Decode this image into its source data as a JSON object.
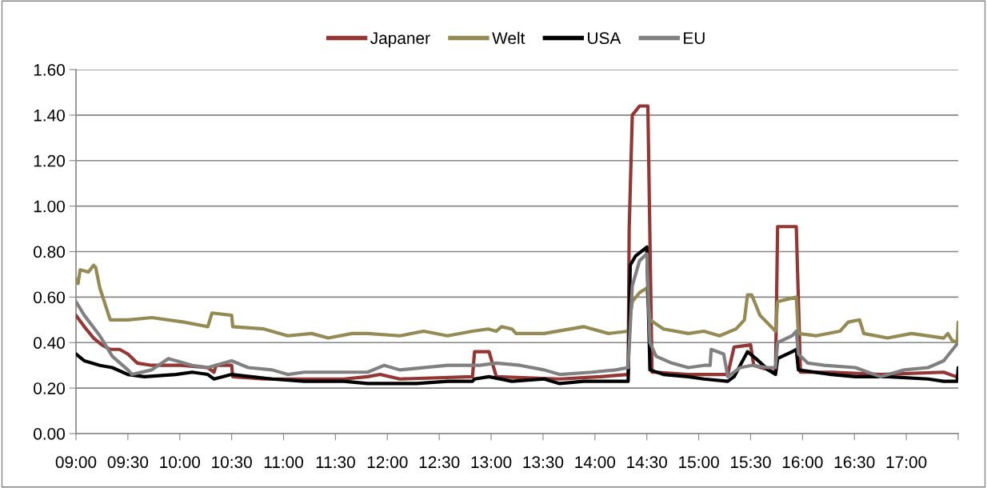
{
  "chart_data": {
    "type": "line",
    "legend": "top",
    "grid": "y",
    "line_style": "solid",
    "marker": "none",
    "xlim": [
      9,
      17.5
    ],
    "ylim": [
      0,
      1.6
    ],
    "xticks": [
      {
        "value": 9,
        "label": "09:00"
      },
      {
        "value": 9.5,
        "label": "09:30"
      },
      {
        "value": 10,
        "label": "10:00"
      },
      {
        "value": 10.5,
        "label": "10:30"
      },
      {
        "value": 11,
        "label": "11:00"
      },
      {
        "value": 11.5,
        "label": "11:30"
      },
      {
        "value": 12,
        "label": "12:00"
      },
      {
        "value": 12.5,
        "label": "12:30"
      },
      {
        "value": 13,
        "label": "13:00"
      },
      {
        "value": 13.5,
        "label": "13:30"
      },
      {
        "value": 14,
        "label": "14:00"
      },
      {
        "value": 14.5,
        "label": "14:30"
      },
      {
        "value": 15,
        "label": "15:00"
      },
      {
        "value": 15.5,
        "label": "15:30"
      },
      {
        "value": 16,
        "label": "16:00"
      },
      {
        "value": 16.5,
        "label": "16:30"
      },
      {
        "value": 17,
        "label": "17:00"
      },
      {
        "value": 17.5,
        "label": null
      }
    ],
    "yticks": [
      {
        "value": 0,
        "label": "0.00"
      },
      {
        "value": 0.2,
        "label": "0.20"
      },
      {
        "value": 0.4,
        "label": "0.40"
      },
      {
        "value": 0.6,
        "label": "0.60"
      },
      {
        "value": 0.8,
        "label": "0.80"
      },
      {
        "value": 1.0,
        "label": "1.00"
      },
      {
        "value": 1.2,
        "label": "1.20"
      },
      {
        "value": 1.4,
        "label": "1.40"
      },
      {
        "value": 1.6,
        "label": "1.60"
      }
    ],
    "series": [
      {
        "name": "Japaner",
        "color": "#943634",
        "x": [
          9,
          9.08,
          9.17,
          9.25,
          9.33,
          9.42,
          9.5,
          9.59,
          9.73,
          10.01,
          10.27,
          10.33,
          10.35,
          10.5,
          10.51,
          10.81,
          11.2,
          11.58,
          11.81,
          11.93,
          12.12,
          12.82,
          12.84,
          12.98,
          13.05,
          13.66,
          14.05,
          14.32,
          14.33,
          14.36,
          14.43,
          14.51,
          14.55,
          14.59,
          14.9,
          15.28,
          15.34,
          15.5,
          15.53,
          15.67,
          15.74,
          15.76,
          15.94,
          15.98,
          16.28,
          16.75,
          17.36,
          17.48,
          17.5
        ],
        "values": [
          0.52,
          0.47,
          0.42,
          0.39,
          0.37,
          0.37,
          0.35,
          0.31,
          0.3,
          0.3,
          0.29,
          0.27,
          0.3,
          0.3,
          0.25,
          0.24,
          0.24,
          0.24,
          0.25,
          0.26,
          0.24,
          0.25,
          0.36,
          0.36,
          0.25,
          0.24,
          0.25,
          0.26,
          0.9,
          1.4,
          1.44,
          1.44,
          0.27,
          0.27,
          0.26,
          0.26,
          0.38,
          0.39,
          0.3,
          0.28,
          0.27,
          0.91,
          0.91,
          0.27,
          0.27,
          0.26,
          0.27,
          0.25,
          0.25
        ]
      },
      {
        "name": "Welt",
        "color": "#948a54",
        "x": [
          9,
          9.02,
          9.04,
          9.12,
          9.17,
          9.19,
          9.23,
          9.33,
          9.5,
          9.73,
          10.04,
          10.27,
          10.31,
          10.5,
          10.51,
          10.81,
          11.04,
          11.27,
          11.43,
          11.66,
          11.81,
          12.12,
          12.35,
          12.58,
          12.82,
          12.97,
          13.05,
          13.1,
          13.2,
          13.24,
          13.51,
          13.89,
          14.13,
          14.32,
          14.36,
          14.43,
          14.5,
          14.53,
          14.66,
          14.9,
          15.05,
          15.2,
          15.36,
          15.44,
          15.47,
          15.51,
          15.59,
          15.74,
          15.76,
          15.94,
          15.96,
          16.13,
          16.36,
          16.44,
          16.55,
          16.59,
          16.82,
          17.05,
          17.36,
          17.4,
          17.44,
          17.49,
          17.5
        ],
        "values": [
          0.68,
          0.66,
          0.72,
          0.71,
          0.74,
          0.73,
          0.64,
          0.5,
          0.5,
          0.51,
          0.49,
          0.47,
          0.53,
          0.52,
          0.47,
          0.46,
          0.43,
          0.44,
          0.42,
          0.44,
          0.44,
          0.43,
          0.45,
          0.43,
          0.45,
          0.46,
          0.45,
          0.47,
          0.46,
          0.44,
          0.44,
          0.47,
          0.44,
          0.45,
          0.58,
          0.62,
          0.64,
          0.5,
          0.46,
          0.44,
          0.45,
          0.43,
          0.46,
          0.5,
          0.61,
          0.61,
          0.52,
          0.45,
          0.58,
          0.6,
          0.44,
          0.43,
          0.45,
          0.49,
          0.5,
          0.44,
          0.42,
          0.44,
          0.42,
          0.44,
          0.41,
          0.4,
          0.49
        ]
      },
      {
        "name": "USA",
        "color": "#000000",
        "x": [
          9,
          9.08,
          9.23,
          9.35,
          9.5,
          9.66,
          9.96,
          10.12,
          10.27,
          10.33,
          10.5,
          10.89,
          11.2,
          11.58,
          11.81,
          12.28,
          12.58,
          12.82,
          12.84,
          12.98,
          13.2,
          13.51,
          13.66,
          13.89,
          14.32,
          14.34,
          14.39,
          14.5,
          14.53,
          14.66,
          14.9,
          15.05,
          15.28,
          15.34,
          15.47,
          15.55,
          15.67,
          15.74,
          15.76,
          15.9,
          15.94,
          15.96,
          16.28,
          16.51,
          16.82,
          17.21,
          17.36,
          17.49,
          17.5
        ],
        "values": [
          0.35,
          0.32,
          0.3,
          0.29,
          0.26,
          0.25,
          0.26,
          0.27,
          0.26,
          0.24,
          0.26,
          0.24,
          0.23,
          0.23,
          0.22,
          0.22,
          0.23,
          0.23,
          0.24,
          0.25,
          0.23,
          0.24,
          0.22,
          0.23,
          0.23,
          0.74,
          0.78,
          0.82,
          0.28,
          0.26,
          0.25,
          0.24,
          0.23,
          0.25,
          0.36,
          0.33,
          0.28,
          0.26,
          0.33,
          0.36,
          0.37,
          0.28,
          0.26,
          0.25,
          0.25,
          0.24,
          0.23,
          0.23,
          0.29
        ]
      },
      {
        "name": "EU",
        "color": "#808080",
        "x": [
          9,
          9.08,
          9.23,
          9.35,
          9.5,
          9.54,
          9.73,
          9.89,
          10.12,
          10.27,
          10.5,
          10.66,
          10.89,
          11.04,
          11.2,
          11.58,
          11.81,
          11.97,
          12.12,
          12.58,
          12.89,
          13.05,
          13.28,
          13.51,
          13.66,
          13.97,
          14.2,
          14.32,
          14.36,
          14.43,
          14.5,
          14.53,
          14.59,
          14.74,
          14.9,
          15.05,
          15.11,
          15.12,
          15.24,
          15.28,
          15.4,
          15.51,
          15.67,
          15.74,
          15.76,
          15.9,
          15.94,
          15.96,
          16.05,
          16.21,
          16.51,
          16.75,
          16.98,
          17.21,
          17.36,
          17.5
        ],
        "values": [
          0.58,
          0.52,
          0.43,
          0.34,
          0.28,
          0.26,
          0.28,
          0.33,
          0.3,
          0.29,
          0.32,
          0.29,
          0.28,
          0.26,
          0.27,
          0.27,
          0.27,
          0.3,
          0.28,
          0.3,
          0.3,
          0.31,
          0.3,
          0.28,
          0.26,
          0.27,
          0.28,
          0.29,
          0.65,
          0.76,
          0.79,
          0.4,
          0.34,
          0.31,
          0.29,
          0.3,
          0.3,
          0.37,
          0.35,
          0.25,
          0.29,
          0.3,
          0.29,
          0.29,
          0.4,
          0.43,
          0.45,
          0.35,
          0.31,
          0.3,
          0.29,
          0.25,
          0.28,
          0.29,
          0.32,
          0.4
        ]
      }
    ]
  }
}
